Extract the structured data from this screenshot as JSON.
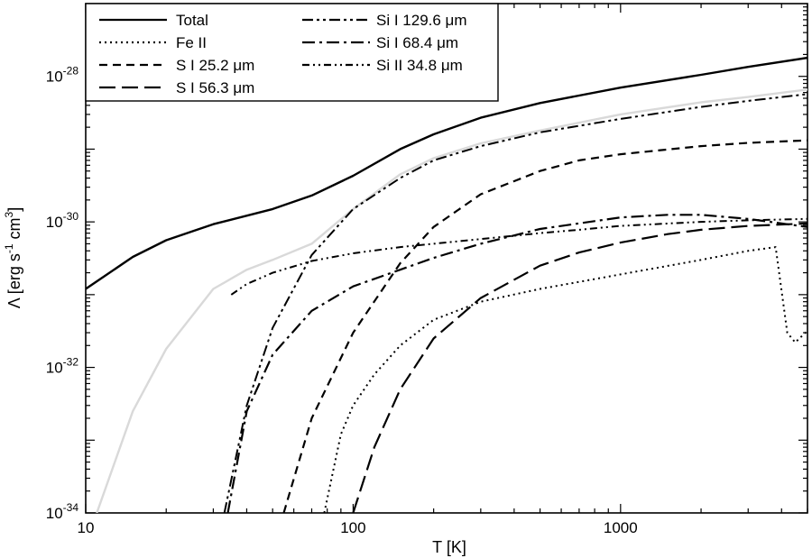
{
  "chart_data": {
    "type": "line",
    "title": "",
    "xlabel": "T [K]",
    "ylabel": "Λ [erg s-1 cm3]",
    "ylabel_parts": {
      "main": "Λ [erg s",
      "exp1": "-1",
      "mid": " cm",
      "exp2": "3",
      "end": "]"
    },
    "x_scale": "log",
    "y_scale": "log",
    "xlim": [
      10,
      5000
    ],
    "ylim": [
      1e-34,
      1e-27
    ],
    "x_ticks": [
      {
        "value": 10,
        "label": "10"
      },
      {
        "value": 100,
        "label": "100"
      },
      {
        "value": 1000,
        "label": "1000"
      }
    ],
    "y_ticks": [
      {
        "value": 1e-34,
        "base": "10",
        "exp": "-34"
      },
      {
        "value": 1e-32,
        "base": "10",
        "exp": "-32"
      },
      {
        "value": 1e-30,
        "base": "10",
        "exp": "-30"
      },
      {
        "value": 1e-28,
        "base": "10",
        "exp": "-28"
      }
    ],
    "grid": false,
    "legend_position": "top-left",
    "legend": [
      {
        "label": "Total",
        "style": "solid"
      },
      {
        "label": "Fe II",
        "style": "dotted"
      },
      {
        "label": "S I 25.2 μm",
        "style": "dashed"
      },
      {
        "label": "S I 56.3 μm",
        "style": "longdash"
      },
      {
        "label": "Si I 129.6 μm",
        "style": "dashdotdot"
      },
      {
        "label": "Si I 68.4 μm",
        "style": "dashdot"
      },
      {
        "label": "Si II 34.8 μm",
        "style": "dashdotdot2"
      }
    ],
    "series": [
      {
        "name": "Total",
        "style": "solid",
        "color": "#000000",
        "width": 2.4,
        "x": [
          10,
          15,
          20,
          30,
          50,
          70,
          100,
          150,
          200,
          300,
          500,
          1000,
          2000,
          3000,
          5000
        ],
        "y": [
          1.2e-31,
          3.3e-31,
          5.6e-31,
          9.3e-31,
          1.5e-30,
          2.3e-30,
          4.3e-30,
          1e-29,
          1.6e-29,
          2.7e-29,
          4.3e-29,
          7e-29,
          1.05e-28,
          1.35e-28,
          1.8e-28
        ]
      },
      {
        "name": "",
        "style": "solid",
        "color": "#d9d9d9",
        "width": 2.4,
        "x": [
          11,
          15,
          20,
          30,
          40,
          50,
          70,
          100,
          150,
          200,
          300,
          500,
          1000,
          2000,
          3000,
          5000
        ],
        "y": [
          1e-34,
          2.5e-33,
          1.8e-32,
          1.2e-31,
          2.2e-31,
          3e-31,
          5e-31,
          1.5e-30,
          4.5e-30,
          7.5e-30,
          1.2e-29,
          1.8e-29,
          3e-29,
          4.4e-29,
          5.2e-29,
          6.6e-29
        ]
      },
      {
        "name": "Fe II",
        "style": "dotted",
        "color": "#000000",
        "width": 2.0,
        "x": [
          78,
          90,
          100,
          120,
          150,
          200,
          300,
          500,
          1000,
          2000,
          3000,
          3800,
          4200,
          4500,
          5000
        ],
        "y": [
          1e-34,
          1.2e-33,
          3e-33,
          8e-33,
          2e-32,
          4.5e-32,
          8e-32,
          1.2e-31,
          1.9e-31,
          3e-31,
          4e-31,
          4.5e-31,
          3e-32,
          2.2e-32,
          3.2e-32
        ]
      },
      {
        "name": "S I 25.2 μm",
        "style": "dashed",
        "color": "#000000",
        "width": 2.2,
        "x": [
          55,
          70,
          100,
          150,
          200,
          300,
          500,
          700,
          1000,
          2000,
          3000,
          5000
        ],
        "y": [
          1e-34,
          2e-33,
          3e-32,
          2.7e-31,
          8.5e-31,
          2.4e-30,
          5e-30,
          7e-30,
          8.5e-30,
          1.1e-29,
          1.22e-29,
          1.32e-29
        ]
      },
      {
        "name": "S I 56.3 μm",
        "style": "longdash",
        "color": "#000000",
        "width": 2.2,
        "x": [
          100,
          120,
          150,
          200,
          300,
          500,
          700,
          1000,
          1500,
          2000,
          3000,
          5000
        ],
        "y": [
          1e-34,
          8e-34,
          5e-33,
          2.5e-32,
          9e-32,
          2.5e-31,
          3.8e-31,
          5.2e-31,
          6.8e-31,
          7.8e-31,
          8.8e-31,
          9.5e-31
        ]
      },
      {
        "name": "Si I 129.6 μm",
        "style": "dashdotdot",
        "color": "#000000",
        "width": 2.0,
        "x": [
          33,
          40,
          50,
          70,
          100,
          150,
          200,
          300,
          500,
          1000,
          2000,
          3000,
          5000
        ],
        "y": [
          1e-34,
          3e-33,
          3.5e-32,
          3.5e-31,
          1.5e-30,
          4e-30,
          7e-30,
          1.1e-29,
          1.7e-29,
          2.6e-29,
          3.8e-29,
          4.6e-29,
          5.7e-29
        ]
      },
      {
        "name": "Si I 68.4 μm",
        "style": "dashdot",
        "color": "#000000",
        "width": 2.2,
        "x": [
          34,
          40,
          50,
          70,
          100,
          150,
          200,
          300,
          500,
          1000,
          1500,
          2000,
          3000,
          5000
        ],
        "y": [
          1e-34,
          2.5e-33,
          1.5e-32,
          6e-32,
          1.3e-31,
          2.2e-31,
          3.2e-31,
          5e-31,
          8e-31,
          1.15e-30,
          1.25e-30,
          1.25e-30,
          1.1e-30,
          8.5e-31
        ]
      },
      {
        "name": "Si II 34.8 μm",
        "style": "dashdotdot2",
        "color": "#000000",
        "width": 2.0,
        "x": [
          35,
          40,
          50,
          70,
          100,
          150,
          200,
          300,
          500,
          700,
          1000,
          2000,
          3000,
          5000
        ],
        "y": [
          1e-31,
          1.4e-31,
          2e-31,
          2.9e-31,
          3.7e-31,
          4.5e-31,
          5e-31,
          5.8e-31,
          7e-31,
          7.8e-31,
          8.8e-31,
          1e-30,
          1.05e-30,
          1.1e-30
        ]
      }
    ]
  }
}
